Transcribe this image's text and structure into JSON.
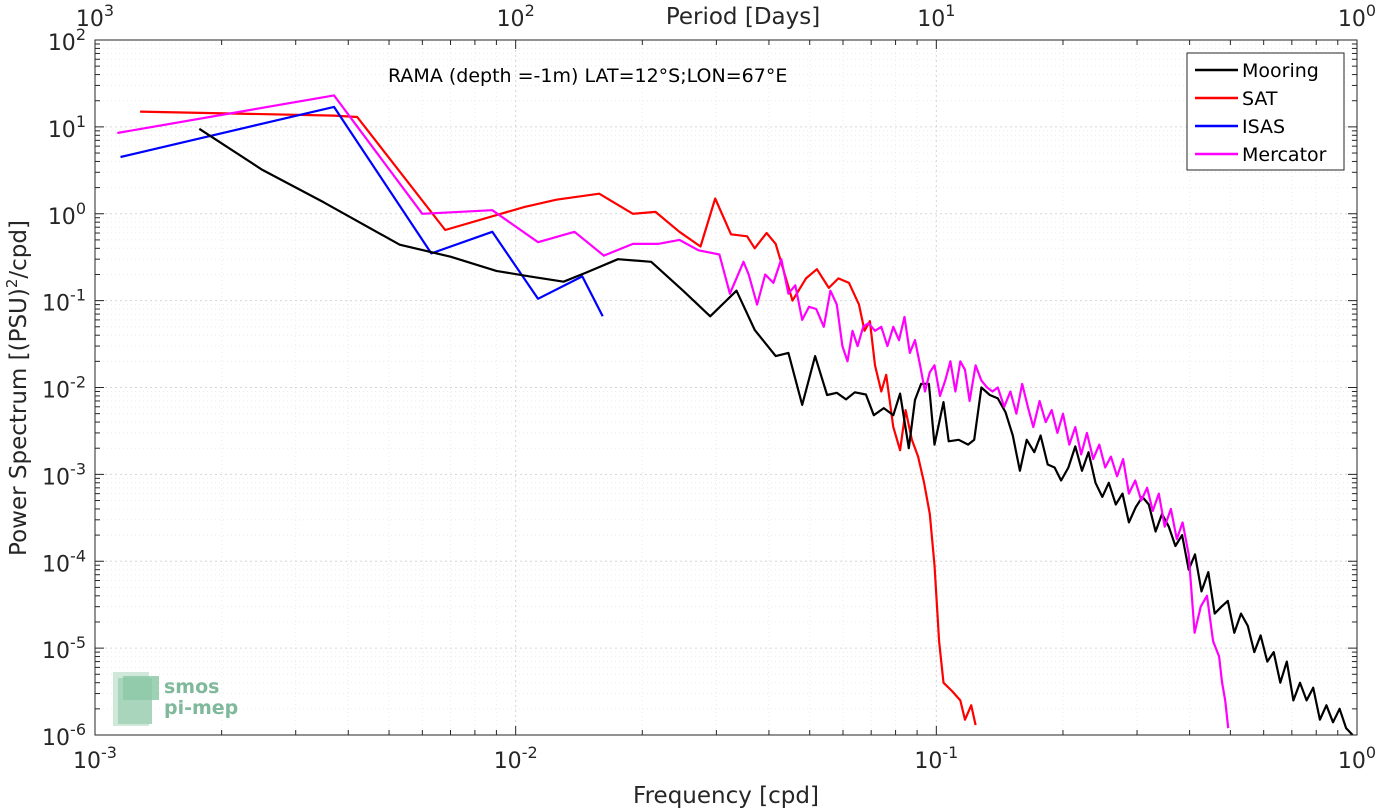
{
  "chart_data": {
    "type": "line",
    "title": "RAMA (depth =-1m) LAT=12°S;LON=67°E",
    "xlabel": "Frequency [cpd]",
    "ylabel": "Power Spectrum [(PSU)",
    "ylabel_sup": "2",
    "ylabel_tail": "/cpd]",
    "top_xlabel": "Period [Days]",
    "xscale": "log",
    "yscale": "log",
    "xlim": [
      0.001,
      1
    ],
    "ylim": [
      1e-06,
      100
    ],
    "grid": true,
    "legend_position": "top-right",
    "x_ticks": [
      {
        "value": 0.001,
        "base": "10",
        "exp": "-3"
      },
      {
        "value": 0.01,
        "base": "10",
        "exp": "-2"
      },
      {
        "value": 0.1,
        "base": "10",
        "exp": "-1"
      },
      {
        "value": 1,
        "base": "10",
        "exp": "0"
      }
    ],
    "top_ticks": [
      {
        "value": 0.001,
        "base": "10",
        "exp": "3"
      },
      {
        "value": 0.01,
        "base": "10",
        "exp": "2"
      },
      {
        "value": 0.1,
        "base": "10",
        "exp": "1"
      },
      {
        "value": 1,
        "base": "10",
        "exp": "0"
      }
    ],
    "y_ticks": [
      {
        "value": 100,
        "base": "10",
        "exp": "2"
      },
      {
        "value": 10,
        "base": "10",
        "exp": "1"
      },
      {
        "value": 1,
        "base": "10",
        "exp": "0"
      },
      {
        "value": 0.1,
        "base": "10",
        "exp": "-1"
      },
      {
        "value": 0.01,
        "base": "10",
        "exp": "-2"
      },
      {
        "value": 0.001,
        "base": "10",
        "exp": "-3"
      },
      {
        "value": 0.0001,
        "base": "10",
        "exp": "-4"
      },
      {
        "value": 1e-05,
        "base": "10",
        "exp": "-5"
      },
      {
        "value": 1e-06,
        "base": "10",
        "exp": "-6"
      }
    ],
    "series": [
      {
        "name": "Mooring",
        "color": "#000000",
        "points": [
          [
            0.00177,
            9.5
          ],
          [
            0.0025,
            3.2
          ],
          [
            0.0035,
            1.35
          ],
          [
            0.0053,
            0.44
          ],
          [
            0.007,
            0.32
          ],
          [
            0.009,
            0.22
          ],
          [
            0.0108,
            0.19
          ],
          [
            0.013,
            0.165
          ],
          [
            0.0147,
            0.21
          ],
          [
            0.0175,
            0.3
          ],
          [
            0.021,
            0.28
          ],
          [
            0.025,
            0.13
          ],
          [
            0.029,
            0.066
          ],
          [
            0.0335,
            0.13
          ],
          [
            0.037,
            0.046
          ],
          [
            0.0415,
            0.023
          ],
          [
            0.0445,
            0.025
          ],
          [
            0.048,
            0.0063
          ],
          [
            0.0515,
            0.023
          ],
          [
            0.055,
            0.0082
          ],
          [
            0.058,
            0.0087
          ],
          [
            0.061,
            0.0073
          ],
          [
            0.064,
            0.0088
          ],
          [
            0.068,
            0.0083
          ],
          [
            0.071,
            0.0048
          ],
          [
            0.075,
            0.0058
          ],
          [
            0.079,
            0.0048
          ],
          [
            0.082,
            0.0085
          ],
          [
            0.086,
            0.002
          ],
          [
            0.089,
            0.0072
          ],
          [
            0.092,
            0.011
          ],
          [
            0.096,
            0.011
          ],
          [
            0.099,
            0.0022
          ],
          [
            0.104,
            0.0068
          ],
          [
            0.107,
            0.0024
          ],
          [
            0.113,
            0.0025
          ],
          [
            0.119,
            0.0022
          ],
          [
            0.123,
            0.0025
          ],
          [
            0.128,
            0.01
          ],
          [
            0.134,
            0.0082
          ],
          [
            0.14,
            0.0075
          ],
          [
            0.146,
            0.0052
          ],
          [
            0.152,
            0.0028
          ],
          [
            0.158,
            0.0011
          ],
          [
            0.164,
            0.0025
          ],
          [
            0.171,
            0.0018
          ],
          [
            0.177,
            0.0028
          ],
          [
            0.184,
            0.0013
          ],
          [
            0.191,
            0.0012
          ],
          [
            0.198,
            0.00085
          ],
          [
            0.206,
            0.0012
          ],
          [
            0.214,
            0.0021
          ],
          [
            0.222,
            0.0011
          ],
          [
            0.23,
            0.0018
          ],
          [
            0.239,
            0.0008
          ],
          [
            0.248,
            0.00055
          ],
          [
            0.257,
            0.0008
          ],
          [
            0.267,
            0.00045
          ],
          [
            0.277,
            0.0006
          ],
          [
            0.287,
            0.00028
          ],
          [
            0.298,
            0.00042
          ],
          [
            0.309,
            0.00055
          ],
          [
            0.32,
            0.00045
          ],
          [
            0.332,
            0.00022
          ],
          [
            0.344,
            0.00035
          ],
          [
            0.357,
            0.00025
          ],
          [
            0.37,
            0.00015
          ],
          [
            0.384,
            0.0002
          ],
          [
            0.398,
            8e-05
          ],
          [
            0.412,
            0.00012
          ],
          [
            0.427,
            4.5e-05
          ],
          [
            0.443,
            7.5e-05
          ],
          [
            0.459,
            2.5e-05
          ],
          [
            0.476,
            3e-05
          ],
          [
            0.493,
            3.5e-05
          ],
          [
            0.511,
            1.5e-05
          ],
          [
            0.53,
            2.5e-05
          ],
          [
            0.55,
            1.8e-05
          ],
          [
            0.57,
            9e-06
          ],
          [
            0.59,
            1.4e-05
          ],
          [
            0.612,
            7e-06
          ],
          [
            0.634,
            9e-06
          ],
          [
            0.657,
            4e-06
          ],
          [
            0.681,
            7e-06
          ],
          [
            0.706,
            2.5e-06
          ],
          [
            0.732,
            4e-06
          ],
          [
            0.759,
            2.5e-06
          ],
          [
            0.787,
            3.5e-06
          ],
          [
            0.816,
            1.5e-06
          ],
          [
            0.846,
            2.2e-06
          ],
          [
            0.877,
            1.4e-06
          ],
          [
            0.909,
            2e-06
          ],
          [
            0.942,
            1.2e-06
          ],
          [
            0.976,
            1e-06
          ]
        ]
      },
      {
        "name": "SAT",
        "color": "#ff0000",
        "points": [
          [
            0.00128,
            15
          ],
          [
            0.0037,
            13.5
          ],
          [
            0.0042,
            13
          ],
          [
            0.0068,
            0.65
          ],
          [
            0.0089,
            0.95
          ],
          [
            0.0105,
            1.2
          ],
          [
            0.0125,
            1.45
          ],
          [
            0.0158,
            1.7
          ],
          [
            0.019,
            1.0
          ],
          [
            0.0215,
            1.05
          ],
          [
            0.0245,
            0.62
          ],
          [
            0.0275,
            0.42
          ],
          [
            0.0298,
            1.5
          ],
          [
            0.0325,
            0.58
          ],
          [
            0.0355,
            0.55
          ],
          [
            0.037,
            0.4
          ],
          [
            0.0395,
            0.6
          ],
          [
            0.0415,
            0.45
          ],
          [
            0.0455,
            0.1
          ],
          [
            0.049,
            0.18
          ],
          [
            0.052,
            0.23
          ],
          [
            0.0555,
            0.14
          ],
          [
            0.0585,
            0.18
          ],
          [
            0.062,
            0.16
          ],
          [
            0.0655,
            0.09
          ],
          [
            0.0675,
            0.045
          ],
          [
            0.0695,
            0.058
          ],
          [
            0.0715,
            0.018
          ],
          [
            0.074,
            0.009
          ],
          [
            0.076,
            0.014
          ],
          [
            0.079,
            0.0035
          ],
          [
            0.082,
            0.0019
          ],
          [
            0.0845,
            0.0055
          ],
          [
            0.0875,
            0.0025
          ],
          [
            0.0905,
            0.0016
          ],
          [
            0.0935,
            0.0008
          ],
          [
            0.0965,
            0.00035
          ],
          [
            0.099,
            9e-05
          ],
          [
            0.1015,
            1.2e-05
          ],
          [
            0.104,
            4e-06
          ],
          [
            0.109,
            3.2e-06
          ],
          [
            0.114,
            2.5e-06
          ],
          [
            0.117,
            1.5e-06
          ],
          [
            0.121,
            2.2e-06
          ],
          [
            0.124,
            1.3e-06
          ]
        ]
      },
      {
        "name": "ISAS",
        "color": "#0000ff",
        "points": [
          [
            0.00115,
            4.5
          ],
          [
            0.0037,
            17
          ],
          [
            0.0063,
            0.35
          ],
          [
            0.0088,
            0.62
          ],
          [
            0.0113,
            0.105
          ],
          [
            0.0144,
            0.19
          ],
          [
            0.0161,
            0.066
          ]
        ]
      },
      {
        "name": "Mercator",
        "color": "#ff00ff",
        "points": [
          [
            0.00113,
            8.5
          ],
          [
            0.0037,
            23
          ],
          [
            0.006,
            1.0
          ],
          [
            0.0088,
            1.1
          ],
          [
            0.0113,
            0.47
          ],
          [
            0.0138,
            0.62
          ],
          [
            0.0162,
            0.33
          ],
          [
            0.019,
            0.45
          ],
          [
            0.0218,
            0.45
          ],
          [
            0.0245,
            0.5
          ],
          [
            0.0272,
            0.38
          ],
          [
            0.0305,
            0.34
          ],
          [
            0.0323,
            0.12
          ],
          [
            0.0348,
            0.28
          ],
          [
            0.0358,
            0.2
          ],
          [
            0.0375,
            0.09
          ],
          [
            0.0392,
            0.2
          ],
          [
            0.041,
            0.16
          ],
          [
            0.0428,
            0.3
          ],
          [
            0.0445,
            0.12
          ],
          [
            0.0462,
            0.15
          ],
          [
            0.048,
            0.06
          ],
          [
            0.0498,
            0.085
          ],
          [
            0.0518,
            0.08
          ],
          [
            0.054,
            0.05
          ],
          [
            0.056,
            0.13
          ],
          [
            0.058,
            0.09
          ],
          [
            0.0598,
            0.03
          ],
          [
            0.0615,
            0.02
          ],
          [
            0.0632,
            0.045
          ],
          [
            0.065,
            0.03
          ],
          [
            0.067,
            0.05
          ],
          [
            0.069,
            0.055
          ],
          [
            0.0715,
            0.045
          ],
          [
            0.074,
            0.05
          ],
          [
            0.0765,
            0.03
          ],
          [
            0.079,
            0.05
          ],
          [
            0.0815,
            0.035
          ],
          [
            0.084,
            0.065
          ],
          [
            0.0865,
            0.025
          ],
          [
            0.089,
            0.035
          ],
          [
            0.0915,
            0.018
          ],
          [
            0.094,
            0.009
          ],
          [
            0.0965,
            0.015
          ],
          [
            0.099,
            0.018
          ],
          [
            0.102,
            0.008
          ],
          [
            0.105,
            0.012
          ],
          [
            0.108,
            0.02
          ],
          [
            0.111,
            0.009
          ],
          [
            0.114,
            0.02
          ],
          [
            0.117,
            0.016
          ],
          [
            0.12,
            0.007
          ],
          [
            0.124,
            0.018
          ],
          [
            0.128,
            0.012
          ],
          [
            0.132,
            0.01
          ],
          [
            0.136,
            0.009
          ],
          [
            0.14,
            0.01
          ],
          [
            0.145,
            0.006
          ],
          [
            0.15,
            0.009
          ],
          [
            0.155,
            0.005
          ],
          [
            0.16,
            0.011
          ],
          [
            0.165,
            0.006
          ],
          [
            0.17,
            0.0035
          ],
          [
            0.176,
            0.007
          ],
          [
            0.182,
            0.004
          ],
          [
            0.188,
            0.0055
          ],
          [
            0.194,
            0.003
          ],
          [
            0.2,
            0.005
          ],
          [
            0.207,
            0.0022
          ],
          [
            0.214,
            0.0035
          ],
          [
            0.221,
            0.0017
          ],
          [
            0.228,
            0.003
          ],
          [
            0.236,
            0.0015
          ],
          [
            0.244,
            0.0022
          ],
          [
            0.252,
            0.0012
          ],
          [
            0.26,
            0.0016
          ],
          [
            0.269,
            0.00095
          ],
          [
            0.278,
            0.0015
          ],
          [
            0.287,
            0.0006
          ],
          [
            0.297,
            0.00085
          ],
          [
            0.307,
            0.0005
          ],
          [
            0.317,
            0.0007
          ],
          [
            0.327,
            0.00038
          ],
          [
            0.338,
            0.0006
          ],
          [
            0.349,
            0.00025
          ],
          [
            0.361,
            0.0004
          ],
          [
            0.373,
            0.00018
          ],
          [
            0.385,
            0.00028
          ],
          [
            0.398,
            0.00012
          ],
          [
            0.411,
            1.5e-05
          ],
          [
            0.425,
            3e-05
          ],
          [
            0.44,
            4e-05
          ],
          [
            0.455,
            1.2e-05
          ],
          [
            0.47,
            8e-06
          ],
          [
            0.478,
            4e-06
          ],
          [
            0.486,
            2.5e-06
          ],
          [
            0.494,
            1.2e-06
          ]
        ]
      }
    ]
  },
  "logo": {
    "line1": "smos",
    "line2": "pi-mep"
  }
}
